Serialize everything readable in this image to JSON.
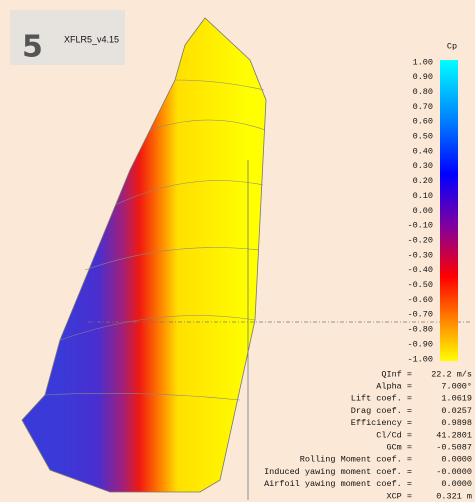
{
  "app": {
    "label": "XFLR5_v4.15"
  },
  "legend": {
    "title": "Cp",
    "ticks": [
      "1.00",
      "0.90",
      "0.80",
      "0.70",
      "0.60",
      "0.50",
      "0.40",
      "0.30",
      "0.20",
      "0.10",
      "0.00",
      "-0.10",
      "-0.20",
      "-0.30",
      "-0.40",
      "-0.50",
      "-0.60",
      "-0.70",
      "-0.80",
      "-0.90",
      "-1.00"
    ]
  },
  "results": [
    {
      "label": "QInf =",
      "value": "22.2 m/s"
    },
    {
      "label": "Alpha =",
      "value": "7.000°"
    },
    {
      "label": "Lift coef. =",
      "value": "1.0619"
    },
    {
      "label": "Drag coef. =",
      "value": "0.0257"
    },
    {
      "label": "Efficiency =",
      "value": "0.9898"
    },
    {
      "label": "Cl/Cd =",
      "value": "41.2801"
    },
    {
      "label": "GCm =",
      "value": "-0.5087"
    },
    {
      "label": "Rolling Moment coef. =",
      "value": "0.0000"
    },
    {
      "label": "Induced yawing moment coef. =",
      "value": "-0.0000"
    },
    {
      "label": "Airfoil yawing moment coef. =",
      "value": "0.0000"
    },
    {
      "label": "XCP =",
      "value": "0.321 m"
    }
  ]
}
